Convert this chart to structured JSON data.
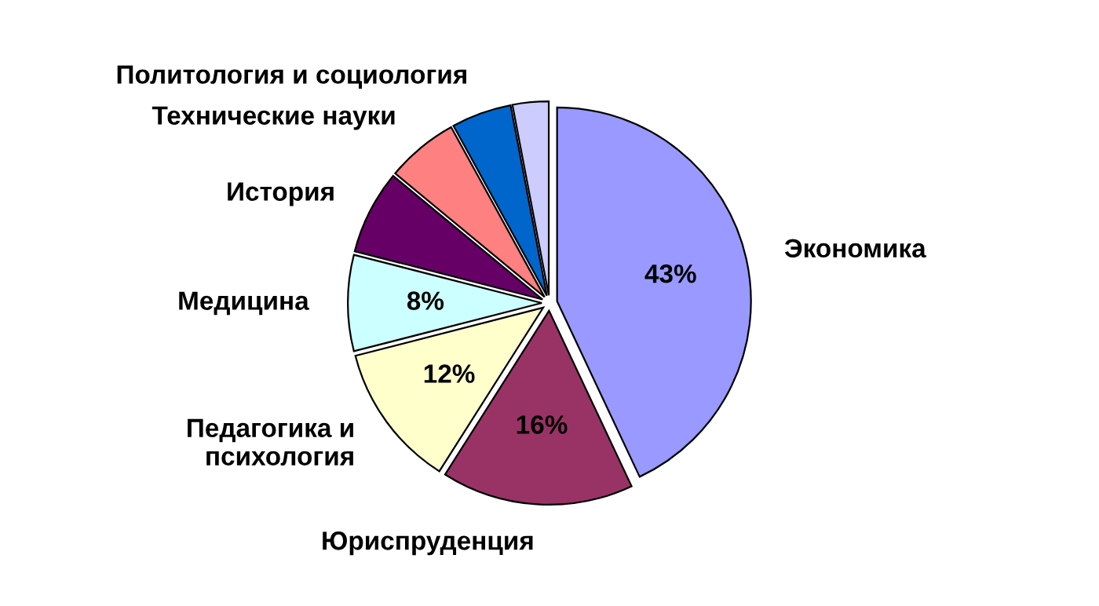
{
  "chart_data": {
    "type": "pie",
    "categories": [
      "Экономика",
      "Юриспруденция",
      "Педагогика и\nпсихология",
      "Медицина",
      "История",
      "Технические науки",
      "Политология и социология",
      null
    ],
    "values": [
      43,
      16,
      12,
      8,
      7,
      6,
      5,
      3
    ],
    "colors": [
      "#9999ff",
      "#993366",
      "#ffffcc",
      "#ccffff",
      "#660066",
      "#ff8080",
      "#0066cc",
      "#ccccff"
    ],
    "value_labels": [
      "43%",
      "16%",
      "12%",
      "8%",
      null,
      null,
      null,
      null
    ],
    "legend": false
  }
}
